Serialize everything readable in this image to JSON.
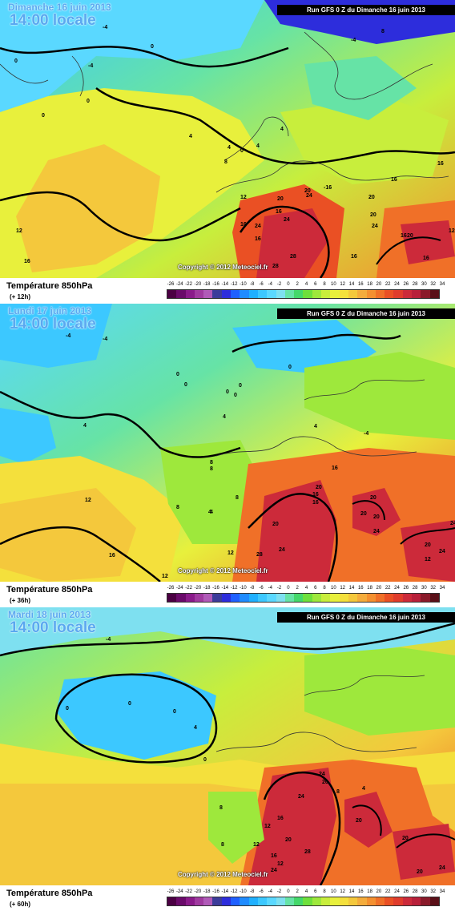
{
  "run_label": "Run GFS 0 Z du Dimanche 16 juin 2013",
  "copyright": "Copyright © 2012 Meteociel.fr",
  "legend_title": "Température 850hPa",
  "scale_ticks": [
    "-26",
    "-24",
    "-22",
    "-20",
    "-18",
    "-16",
    "-14",
    "-12",
    "-10",
    "-8",
    "-6",
    "-4",
    "-2",
    "0",
    "2",
    "4",
    "6",
    "8",
    "10",
    "12",
    "14",
    "16",
    "18",
    "20",
    "22",
    "24",
    "26",
    "28",
    "30",
    "32",
    "34"
  ],
  "scale_colors": [
    "#4b0043",
    "#6a0a6a",
    "#8a1a8a",
    "#a03aa0",
    "#b05ab8",
    "#3c3c9a",
    "#2d2ddc",
    "#1f60ff",
    "#1f8cff",
    "#1fb0ff",
    "#3cc8ff",
    "#5ad8ff",
    "#7ee0f0",
    "#66e3a6",
    "#44d86a",
    "#6ee03c",
    "#9ee83c",
    "#c8ee3c",
    "#e8f03c",
    "#f4e03c",
    "#f4c83c",
    "#f4ac3c",
    "#f49030",
    "#f07028",
    "#ea5024",
    "#e03c2c",
    "#cc2a3a",
    "#b8203a",
    "#8a1a2a",
    "#5a1018"
  ],
  "panels": [
    {
      "date": "Dimanche 16 juin 2013",
      "time": "14:00 locale",
      "lead": "(+ 12h)",
      "labels": [
        "-4",
        "-4",
        "8",
        "0",
        "0",
        "-4",
        "0",
        "0",
        "4",
        "0",
        "4",
        "4",
        "8",
        "4",
        "16",
        "12",
        "20",
        "20",
        "-16",
        "16",
        "24",
        "24",
        "20",
        "20",
        "16",
        "20",
        "28",
        "16",
        "16",
        "24",
        "28",
        "12",
        "16",
        "24",
        "16",
        "16",
        "12",
        "16"
      ]
    },
    {
      "date": "Lundi 17 juin 2013",
      "time": "14:00 locale",
      "lead": "(+ 36h)",
      "labels": [
        "-4",
        "-4",
        "0",
        "0",
        "0",
        "0",
        "0",
        "0",
        "4",
        "4",
        "4",
        "-4",
        "8",
        "4",
        "12",
        "16",
        "20",
        "20",
        "16",
        "20",
        "24",
        "20",
        "20",
        "24",
        "28",
        "24",
        "12",
        "8",
        "4",
        "8",
        "8",
        "16",
        "12",
        "20",
        "16",
        "12",
        "24"
      ]
    },
    {
      "date": "Mardi 18 juin 2013",
      "time": "14:00 locale",
      "lead": "(+ 60h)",
      "labels": [
        "-4",
        "0",
        "0",
        "0",
        "4",
        "0",
        "4",
        "8",
        "24",
        "20",
        "20",
        "20",
        "24",
        "28",
        "16",
        "12",
        "12",
        "16",
        "20",
        "24",
        "24",
        "8",
        "12",
        "20",
        "8"
      ]
    }
  ]
}
